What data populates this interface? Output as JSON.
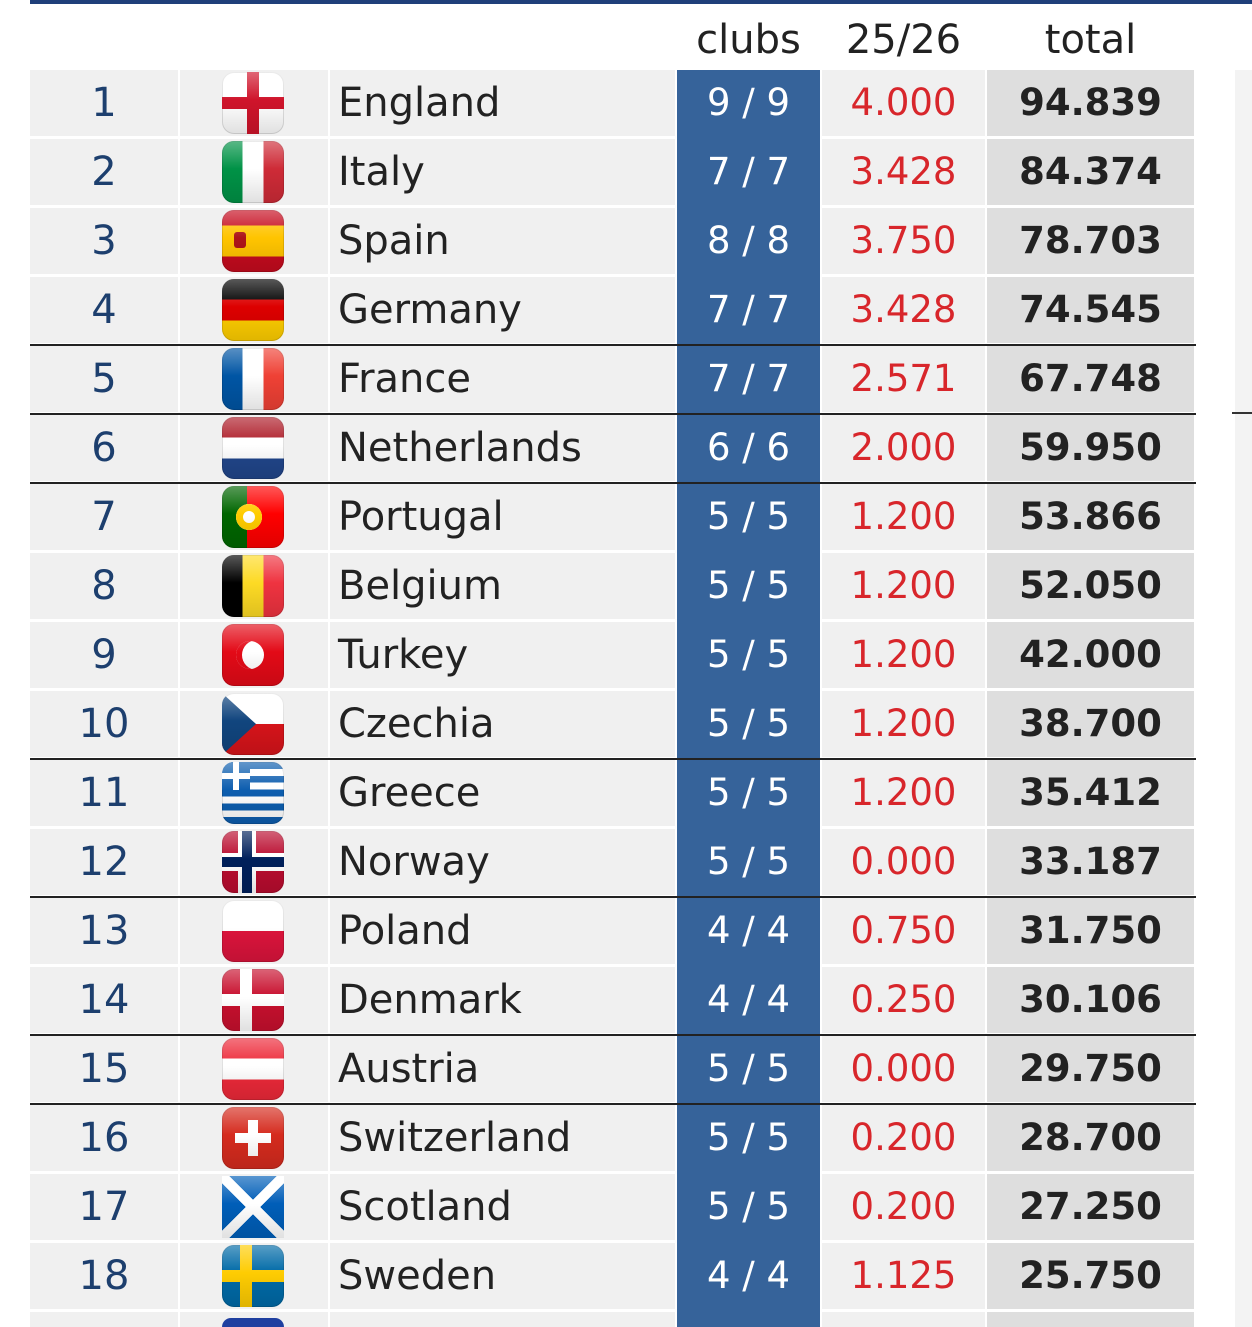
{
  "header": {
    "clubs": "clubs",
    "season": "25/26",
    "total": "total"
  },
  "rows": [
    {
      "rank": "1",
      "flag": "england-flag-icon",
      "country": "England",
      "clubs": "9 / 9",
      "season": "4.000",
      "total": "94.839"
    },
    {
      "rank": "2",
      "flag": "italy-flag-icon",
      "country": "Italy",
      "clubs": "7 / 7",
      "season": "3.428",
      "total": "84.374"
    },
    {
      "rank": "3",
      "flag": "spain-flag-icon",
      "country": "Spain",
      "clubs": "8 / 8",
      "season": "3.750",
      "total": "78.703"
    },
    {
      "rank": "4",
      "flag": "germany-flag-icon",
      "country": "Germany",
      "clubs": "7 / 7",
      "season": "3.428",
      "total": "74.545"
    },
    {
      "rank": "5",
      "flag": "france-flag-icon",
      "country": "France",
      "clubs": "7 / 7",
      "season": "2.571",
      "total": "67.748"
    },
    {
      "rank": "6",
      "flag": "netherlands-flag-icon",
      "country": "Netherlands",
      "clubs": "6 / 6",
      "season": "2.000",
      "total": "59.950"
    },
    {
      "rank": "7",
      "flag": "portugal-flag-icon",
      "country": "Portugal",
      "clubs": "5 / 5",
      "season": "1.200",
      "total": "53.866"
    },
    {
      "rank": "8",
      "flag": "belgium-flag-icon",
      "country": "Belgium",
      "clubs": "5 / 5",
      "season": "1.200",
      "total": "52.050"
    },
    {
      "rank": "9",
      "flag": "turkey-flag-icon",
      "country": "Turkey",
      "clubs": "5 / 5",
      "season": "1.200",
      "total": "42.000"
    },
    {
      "rank": "10",
      "flag": "czechia-flag-icon",
      "country": "Czechia",
      "clubs": "5 / 5",
      "season": "1.200",
      "total": "38.700"
    },
    {
      "rank": "11",
      "flag": "greece-flag-icon",
      "country": "Greece",
      "clubs": "5 / 5",
      "season": "1.200",
      "total": "35.412"
    },
    {
      "rank": "12",
      "flag": "norway-flag-icon",
      "country": "Norway",
      "clubs": "5 / 5",
      "season": "0.000",
      "total": "33.187"
    },
    {
      "rank": "13",
      "flag": "poland-flag-icon",
      "country": "Poland",
      "clubs": "4 / 4",
      "season": "0.750",
      "total": "31.750"
    },
    {
      "rank": "14",
      "flag": "denmark-flag-icon",
      "country": "Denmark",
      "clubs": "4 / 4",
      "season": "0.250",
      "total": "30.106"
    },
    {
      "rank": "15",
      "flag": "austria-flag-icon",
      "country": "Austria",
      "clubs": "5 / 5",
      "season": "0.000",
      "total": "29.750"
    },
    {
      "rank": "16",
      "flag": "switzerland-flag-icon",
      "country": "Switzerland",
      "clubs": "5 / 5",
      "season": "0.200",
      "total": "28.700"
    },
    {
      "rank": "17",
      "flag": "scotland-flag-icon",
      "country": "Scotland",
      "clubs": "5 / 5",
      "season": "0.200",
      "total": "27.250"
    },
    {
      "rank": "18",
      "flag": "sweden-flag-icon",
      "country": "Sweden",
      "clubs": "4 / 4",
      "season": "1.125",
      "total": "25.750"
    }
  ],
  "colors": {
    "clubs_bg": "#36639a",
    "season_text": "#d8262b",
    "total_bg": "#dedede",
    "row_bg": "#f0f0f0",
    "rank_text": "#1d3f6e"
  }
}
